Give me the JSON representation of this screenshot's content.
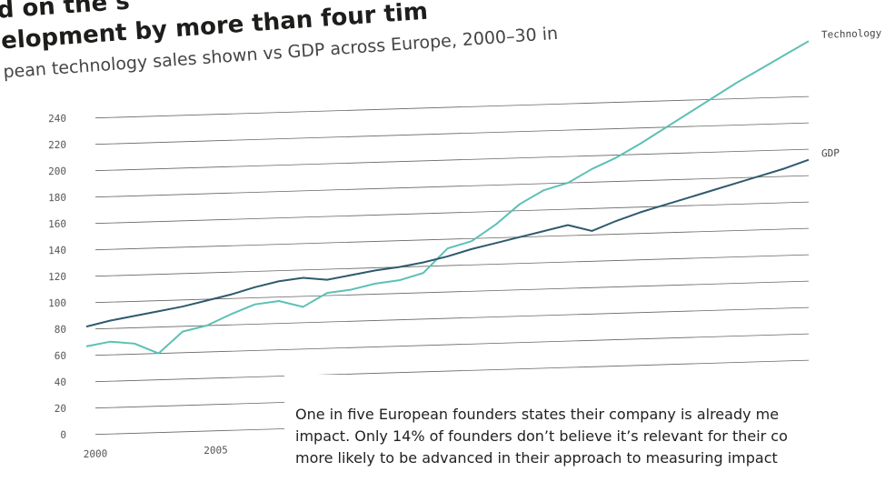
{
  "chart_data": {
    "type": "line",
    "title_lines": [
      "d on the s",
      "elopment by more than four tim"
    ],
    "subtitle": "pean technology sales shown vs GDP across Europe, 2000–30 in",
    "x": [
      2000,
      2001,
      2002,
      2003,
      2004,
      2005,
      2006,
      2007,
      2008,
      2009,
      2010,
      2011,
      2012,
      2013,
      2014,
      2015,
      2016,
      2017,
      2018,
      2019,
      2020,
      2021,
      2022,
      2023,
      2024,
      2025,
      2026,
      2027,
      2028,
      2029,
      2030
    ],
    "xlim": [
      2000,
      2030
    ],
    "xticks": [
      2000,
      2005
    ],
    "ylim": [
      0,
      310
    ],
    "yticks": [
      0,
      20,
      40,
      60,
      80,
      100,
      120,
      140,
      160,
      180,
      200,
      220,
      240
    ],
    "grid": true,
    "series": [
      {
        "name": "Technology",
        "color": "#5cc0b5",
        "values": [
          67,
          70,
          68,
          60,
          76,
          80,
          88,
          95,
          97,
          92,
          102,
          104,
          108,
          110,
          115,
          133,
          138,
          150,
          165,
          175,
          180,
          190,
          198,
          208,
          219,
          230,
          241,
          252,
          262,
          272,
          282
        ]
      },
      {
        "name": "GDP",
        "color": "#2e5a6e",
        "values": [
          82,
          86,
          89,
          92,
          95,
          99,
          103,
          108,
          112,
          114,
          112,
          115,
          118,
          120,
          123,
          127,
          132,
          136,
          140,
          144,
          148,
          143,
          150,
          156,
          161,
          166,
          171,
          176,
          181,
          186,
          192
        ]
      }
    ]
  },
  "note": {
    "lines": [
      "One in five European founders states their company is already me",
      "impact. Only 14% of founders don’t believe it’s relevant for their co",
      "more likely to be advanced in their approach to measuring impact"
    ]
  }
}
